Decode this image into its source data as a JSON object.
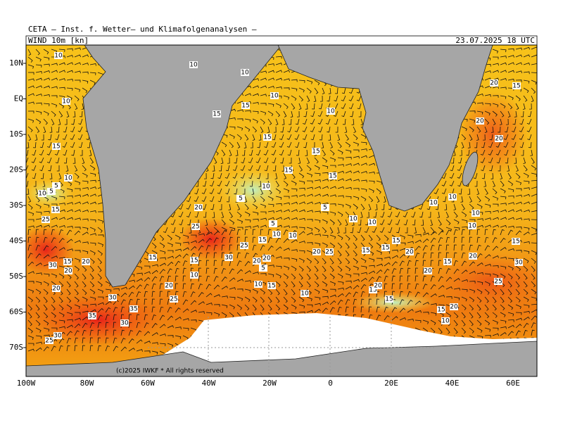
{
  "header": {
    "title": "CETA — Inst. f. Wetter— und Klimafolgenanalysen —",
    "field": "WIND 10m [kn]",
    "valid": "23.07.2025 18 UTC"
  },
  "lat_labels": [
    "10N",
    "EQ",
    "10S",
    "20S",
    "30S",
    "40S",
    "50S",
    "60S",
    "70S"
  ],
  "lon_labels": [
    "100W",
    "80W",
    "60W",
    "40W",
    "20W",
    "0",
    "20E",
    "40E",
    "60E"
  ],
  "copyright": "(c)2025 IWKF * All rights reserved",
  "contour_labels": [
    10,
    10,
    10,
    10,
    15,
    10,
    15,
    10,
    15,
    15,
    15,
    15,
    15,
    10,
    10,
    5,
    10,
    5,
    5,
    20,
    15,
    5,
    25,
    25,
    10,
    10,
    5,
    10,
    10,
    15,
    25,
    20,
    25,
    15,
    15,
    15,
    20,
    15,
    30,
    15,
    20,
    20,
    15,
    30,
    20,
    20,
    5,
    10,
    15,
    10,
    10,
    20,
    20,
    25,
    30,
    15,
    20,
    15,
    35,
    35,
    30,
    30,
    25,
    10,
    10,
    10,
    10,
    15,
    20,
    15,
    20,
    30,
    25,
    15,
    20,
    10,
    20,
    15,
    20,
    20
  ]
}
